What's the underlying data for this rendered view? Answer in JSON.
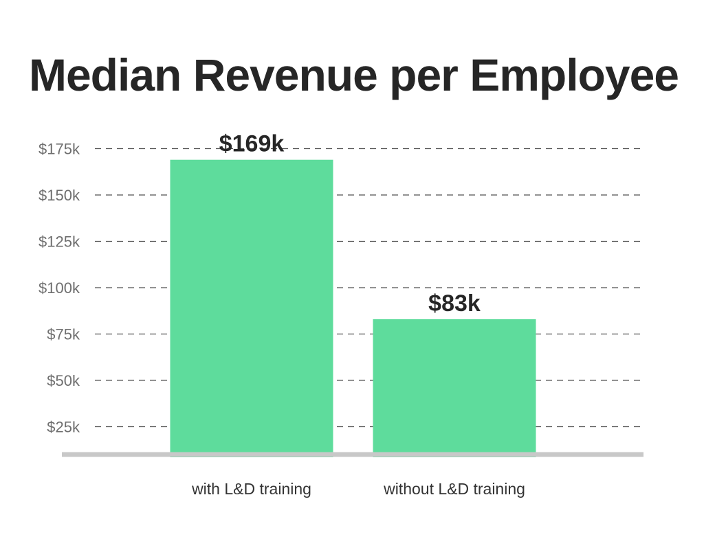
{
  "chart_data": {
    "type": "bar",
    "title": "Median Revenue per Employee",
    "xlabel": "",
    "ylabel": "",
    "categories": [
      "with L&D training",
      "without L&D training"
    ],
    "values": [
      169,
      83
    ],
    "value_labels": [
      "$169k",
      "$83k"
    ],
    "ylim": [
      10,
      180
    ],
    "yticks": [
      25,
      50,
      75,
      100,
      125,
      150,
      175
    ],
    "ytick_labels": [
      "$25k",
      "$50k",
      "$75k",
      "$100k",
      "$125k",
      "$150k",
      "$175k"
    ],
    "grid": true,
    "legend": "none",
    "colors": {
      "bar": "#5edc9c",
      "grid": "#505050",
      "baseline": "#c8c8c8",
      "title": "#262626"
    }
  }
}
